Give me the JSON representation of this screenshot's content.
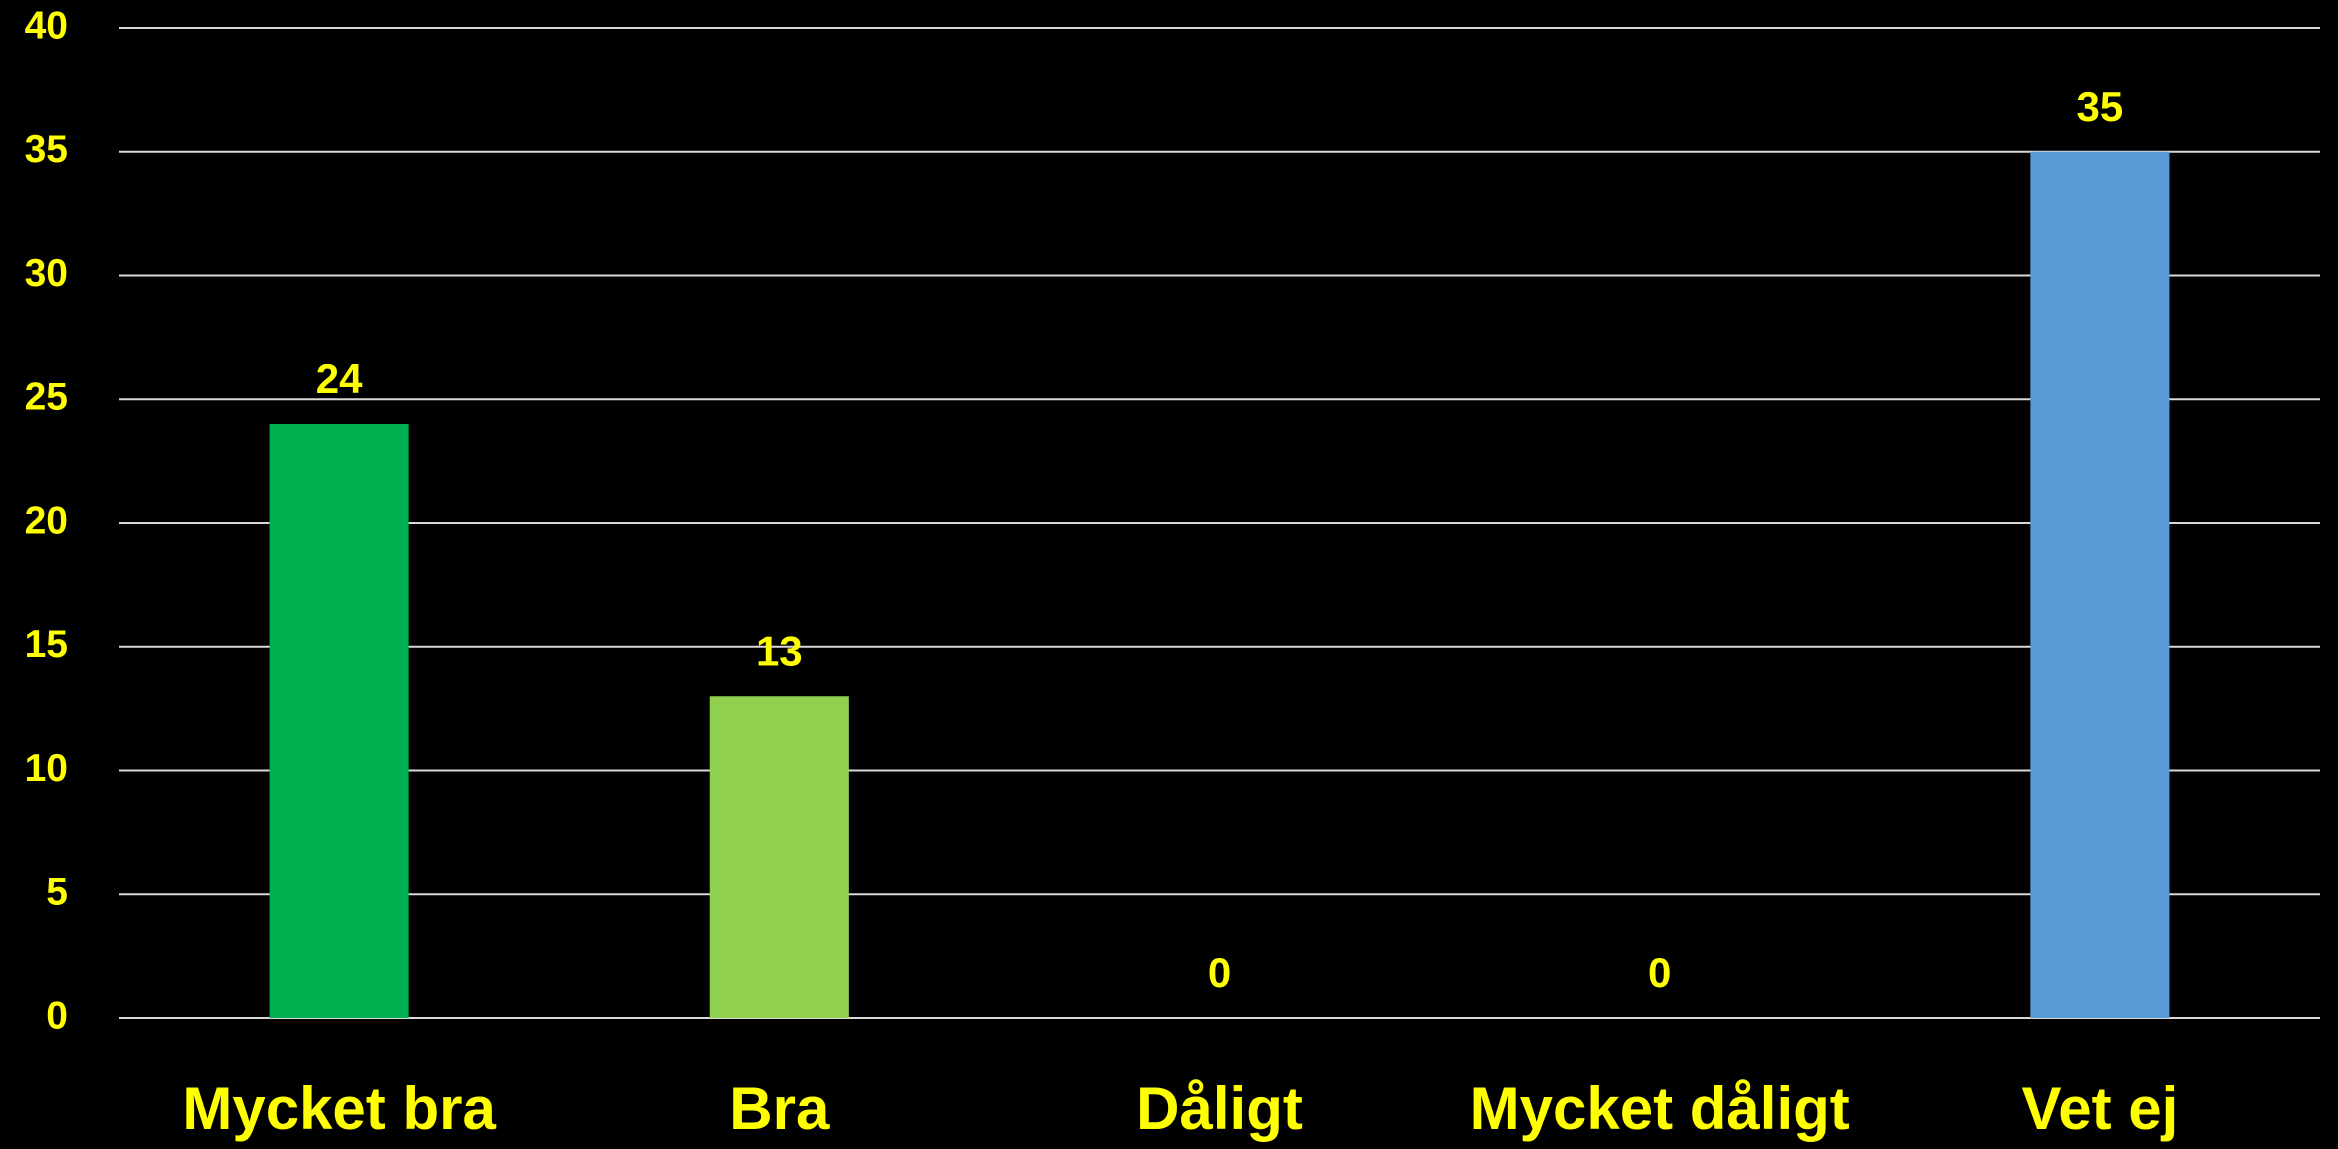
{
  "chart_data": {
    "type": "bar",
    "categories": [
      "Mycket bra",
      "Bra",
      "Dåligt",
      "Mycket dåligt",
      "Vet ej"
    ],
    "values": [
      24,
      13,
      0,
      0,
      35
    ],
    "colors": [
      "#00b050",
      "#92d050",
      null,
      null,
      "#5b9bd5"
    ],
    "ylim": [
      0,
      40
    ],
    "yticks": [
      0,
      5,
      10,
      15,
      20,
      25,
      30,
      35,
      40
    ],
    "grid": true
  }
}
